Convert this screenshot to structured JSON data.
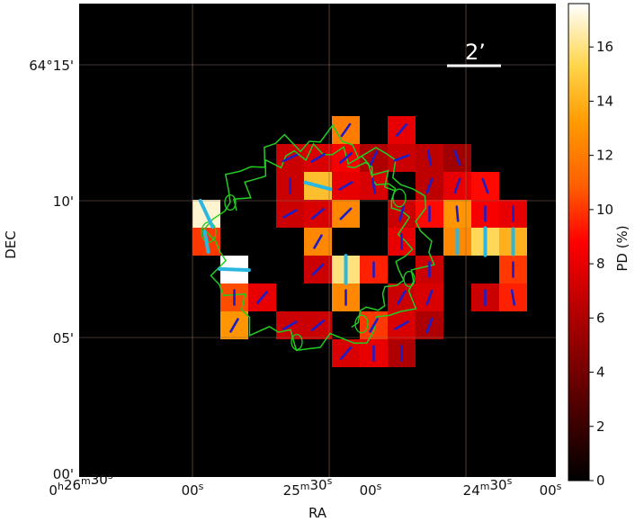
{
  "axes": {
    "xlabel": "RA",
    "ylabel": "DEC",
    "x_ticks": [
      {
        "h": "0",
        "m": "26",
        "s": "30"
      },
      {
        "s": "00"
      },
      {
        "m": "25",
        "s": "30"
      },
      {
        "s": "00"
      },
      {
        "m": "24",
        "s": "30"
      },
      {
        "s": "00"
      }
    ],
    "y_ticks": [
      "64°15'",
      "10'",
      "05'",
      "00'"
    ]
  },
  "colorbar": {
    "label": "PD (%)",
    "ticks": [
      "0",
      "2",
      "4",
      "6",
      "8",
      "10",
      "12",
      "14",
      "16"
    ],
    "range": [
      0,
      17.6
    ],
    "colormap": "afmhot"
  },
  "scalebar": {
    "label": "2’"
  },
  "colors": {
    "background": "#000000",
    "grid": "#8a6a5a",
    "contour": "#22cc22",
    "vector_dark": "#1d1dc8",
    "vector_light": "#2ab8e0"
  },
  "map_data": {
    "grid_columns_ra": 13,
    "grid_rows_dec": 11,
    "note_units": "polarization degree per pixel in percent",
    "pixels": [
      {
        "col": 5,
        "row": 0,
        "pd": 12.0,
        "vec": "dark",
        "angle": -35
      },
      {
        "col": 7,
        "row": 0,
        "pd": 8.0,
        "vec": "dark",
        "angle": -40
      },
      {
        "col": 3,
        "row": 1,
        "pd": 7.0,
        "vec": "dark",
        "angle": -65
      },
      {
        "col": 4,
        "row": 1,
        "pd": 7.5,
        "vec": "dark",
        "angle": -60
      },
      {
        "col": 5,
        "row": 1,
        "pd": 8.5,
        "vec": "dark",
        "angle": -50
      },
      {
        "col": 6,
        "row": 1,
        "pd": 6.0,
        "vec": "dark",
        "angle": -25
      },
      {
        "col": 7,
        "row": 1,
        "pd": 7.0,
        "vec": "dark",
        "angle": -70
      },
      {
        "col": 8,
        "row": 1,
        "pd": 6.5,
        "vec": "dark",
        "angle": 10
      },
      {
        "col": 9,
        "row": 1,
        "pd": 5.5,
        "vec": "dark",
        "angle": 20
      },
      {
        "col": 3,
        "row": 2,
        "pd": 7.0,
        "vec": "dark",
        "angle": 0
      },
      {
        "col": 4,
        "row": 2,
        "pd": 14.5,
        "vec": "light",
        "angle": 75
      },
      {
        "col": 5,
        "row": 2,
        "pd": 8.0,
        "vec": "dark",
        "angle": -60
      },
      {
        "col": 6,
        "row": 2,
        "pd": 7.5,
        "vec": "dark",
        "angle": 10
      },
      {
        "col": 8,
        "row": 2,
        "pd": 6.5,
        "vec": "dark",
        "angle": -20
      },
      {
        "col": 9,
        "row": 2,
        "pd": 8.0,
        "vec": "dark",
        "angle": -20
      },
      {
        "col": 10,
        "row": 2,
        "pd": 9.0,
        "vec": "dark",
        "angle": 20
      },
      {
        "col": 0,
        "row": 3,
        "pd": 17.0,
        "vec": "light",
        "angle": 25
      },
      {
        "col": 3,
        "row": 3,
        "pd": 7.0,
        "vec": "dark",
        "angle": -60
      },
      {
        "col": 4,
        "row": 3,
        "pd": 7.5,
        "vec": "dark",
        "angle": -50
      },
      {
        "col": 5,
        "row": 3,
        "pd": 12.5,
        "vec": "dark",
        "angle": -45
      },
      {
        "col": 7,
        "row": 3,
        "pd": 7.0,
        "vec": "dark",
        "angle": -15
      },
      {
        "col": 8,
        "row": 3,
        "pd": 9.0,
        "vec": "dark",
        "angle": 0
      },
      {
        "col": 9,
        "row": 3,
        "pd": 13.0,
        "vec": "dark",
        "angle": 5
      },
      {
        "col": 10,
        "row": 3,
        "pd": 8.5,
        "vec": "dark",
        "angle": 0
      },
      {
        "col": 11,
        "row": 3,
        "pd": 8.0,
        "vec": "dark",
        "angle": 0
      },
      {
        "col": 0,
        "row": 4,
        "pd": 10.0,
        "vec": "light",
        "angle": 10
      },
      {
        "col": 4,
        "row": 4,
        "pd": 12.5,
        "vec": "dark",
        "angle": -30
      },
      {
        "col": 7,
        "row": 4,
        "pd": 8.0,
        "vec": "dark",
        "angle": 0
      },
      {
        "col": 9,
        "row": 4,
        "pd": 12.5,
        "vec": "light",
        "angle": 0
      },
      {
        "col": 10,
        "row": 4,
        "pd": 15.5,
        "vec": "light",
        "angle": 0
      },
      {
        "col": 11,
        "row": 4,
        "pd": 14.0,
        "vec": "light",
        "angle": 0
      },
      {
        "col": 1,
        "row": 5,
        "pd": 17.6,
        "vec": "light",
        "angle": 88
      },
      {
        "col": 4,
        "row": 5,
        "pd": 7.0,
        "vec": "dark",
        "angle": -45
      },
      {
        "col": 5,
        "row": 5,
        "pd": 16.0,
        "vec": "light",
        "angle": 0
      },
      {
        "col": 6,
        "row": 5,
        "pd": 9.5,
        "vec": "dark",
        "angle": 0
      },
      {
        "col": 8,
        "row": 5,
        "pd": 7.0,
        "vec": "dark",
        "angle": 0
      },
      {
        "col": 11,
        "row": 5,
        "pd": 10.0,
        "vec": "dark",
        "angle": 0
      },
      {
        "col": 1,
        "row": 6,
        "pd": 10.5,
        "vec": "dark",
        "angle": 0
      },
      {
        "col": 2,
        "row": 6,
        "pd": 8.0,
        "vec": "dark",
        "angle": -40
      },
      {
        "col": 5,
        "row": 6,
        "pd": 12.5,
        "vec": "dark",
        "angle": 0
      },
      {
        "col": 7,
        "row": 6,
        "pd": 7.0,
        "vec": "dark",
        "angle": -30
      },
      {
        "col": 8,
        "row": 6,
        "pd": 7.5,
        "vec": "dark",
        "angle": -20
      },
      {
        "col": 10,
        "row": 6,
        "pd": 7.0,
        "vec": "dark",
        "angle": 0
      },
      {
        "col": 11,
        "row": 6,
        "pd": 9.5,
        "vec": "dark",
        "angle": 10
      },
      {
        "col": 1,
        "row": 7,
        "pd": 13.0,
        "vec": "dark",
        "angle": -30
      },
      {
        "col": 3,
        "row": 7,
        "pd": 7.0,
        "vec": "dark",
        "angle": -60
      },
      {
        "col": 4,
        "row": 7,
        "pd": 7.0,
        "vec": "dark",
        "angle": -50
      },
      {
        "col": 6,
        "row": 7,
        "pd": 10.0,
        "vec": "dark",
        "angle": -30
      },
      {
        "col": 7,
        "row": 7,
        "pd": 7.5,
        "vec": "dark",
        "angle": -60
      },
      {
        "col": 8,
        "row": 7,
        "pd": 6.0,
        "vec": "dark",
        "angle": -20
      },
      {
        "col": 5,
        "row": 8,
        "pd": 7.5,
        "vec": "dark",
        "angle": -40
      },
      {
        "col": 6,
        "row": 8,
        "pd": 8.0,
        "vec": "dark",
        "angle": 0
      },
      {
        "col": 7,
        "row": 8,
        "pd": 6.0,
        "vec": "dark",
        "angle": 0
      }
    ]
  }
}
